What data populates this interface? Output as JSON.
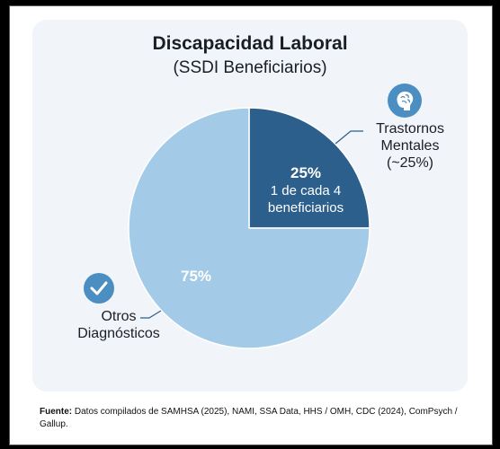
{
  "title": "Discapacidad Laboral",
  "subtitle": "(SSDI Beneficiarios)",
  "colors": {
    "dark_slice": "#2c5f8c",
    "light_slice": "#a3cbe7",
    "icon_bg": "#4b8ec2"
  },
  "icons": {
    "brain": "brain-icon",
    "check": "check-icon"
  },
  "chart_data": {
    "type": "pie",
    "title": "Discapacidad Laboral",
    "subtitle": "(SSDI Beneficiarios)",
    "slices": [
      {
        "name": "Trastornos Mentales",
        "value": 25,
        "percent_label": "25%",
        "inner_note": "1 de cada 4 beneficiarios",
        "callout_lines": [
          "Trastornos",
          "Mentales",
          "(~25%)"
        ],
        "color": "#2c5f8c"
      },
      {
        "name": "Otros Diagnósticos",
        "value": 75,
        "percent_label": "75%",
        "callout_lines": [
          "Otros",
          "Diagnósticos"
        ],
        "color": "#a3cbe7"
      }
    ]
  },
  "inner_label": {
    "percent": "25%",
    "line1": "1 de cada 4",
    "line2": "beneficiarios"
  },
  "source": {
    "prefix": "Fuente:",
    "text": "Datos compilados de SAMHSA (2025), NAMI, SSA Data, HHS / OMH, CDC (2024), ComPsych / Gallup."
  }
}
